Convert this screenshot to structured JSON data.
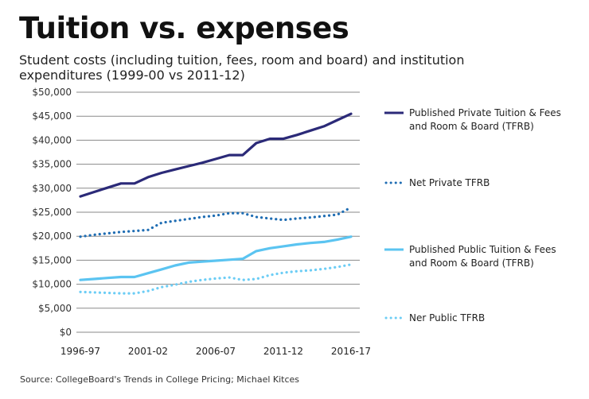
{
  "title": "Tuition vs. expenses",
  "subtitle": "Student costs (including tuition, fees, room and board) and institution expenditures (1999-00 vs 2011-12)",
  "source": "Source: CollegeBoard's Trends in College Pricing; Michael Kitces",
  "chart_data": {
    "type": "line",
    "title": "Tuition vs. expenses",
    "subtitle": "Student costs (including tuition, fees, room and board) and institution expenditures (1999-00 vs 2011-12)",
    "xlabel": "",
    "ylabel": "",
    "ylim": [
      0,
      50000
    ],
    "grid": true,
    "legend_position": "right",
    "x": [
      "1996-97",
      "1997-98",
      "1998-99",
      "1999-00",
      "2000-01",
      "2001-02",
      "2002-03",
      "2003-04",
      "2004-05",
      "2005-06",
      "2006-07",
      "2007-08",
      "2008-09",
      "2009-10",
      "2010-11",
      "2011-12",
      "2012-13",
      "2013-14",
      "2014-15",
      "2015-16",
      "2016-17"
    ],
    "x_tick_labels": [
      "1996-97",
      "2001-02",
      "2006-07",
      "2011-12",
      "2016-17"
    ],
    "y_ticks": [
      0,
      5000,
      10000,
      15000,
      20000,
      25000,
      30000,
      35000,
      40000,
      45000,
      50000
    ],
    "y_tick_labels": [
      "$0",
      "$5,000",
      "$10,000",
      "$15,000",
      "$20,000",
      "$25,000",
      "$30,000",
      "$35,000",
      "$40,000",
      "$45,000",
      "$50,000"
    ],
    "series": [
      {
        "name": "Published Private Tuition & Fees and Room & Board (TFRB)",
        "legend_lines": [
          "Published Private Tuition & Fees",
          "and Room & Board (TFRB)"
        ],
        "style": "solid",
        "color": "#2b2a78",
        "values": [
          28300,
          29200,
          30100,
          31000,
          31000,
          32300,
          33200,
          33900,
          34600,
          35300,
          36100,
          36900,
          36900,
          39400,
          40300,
          40300,
          41100,
          42000,
          42900,
          44200,
          45500
        ]
      },
      {
        "name": "Net Private TFRB",
        "legend_lines": [
          "Net Private TFRB"
        ],
        "style": "dotted",
        "color": "#1f6db3",
        "values": [
          19900,
          20300,
          20600,
          20900,
          21100,
          21300,
          22800,
          23200,
          23600,
          24000,
          24300,
          24800,
          24800,
          24000,
          23700,
          23400,
          23700,
          23900,
          24200,
          24500,
          26000
        ]
      },
      {
        "name": "Published Public Tuition & Fees and Room & Board (TFRB)",
        "legend_lines": [
          "Published Public Tuition & Fees",
          "and Room & Board (TFRB)"
        ],
        "style": "solid",
        "color": "#5bc4f1",
        "values": [
          10900,
          11100,
          11300,
          11500,
          11500,
          12300,
          13100,
          13900,
          14500,
          14700,
          14900,
          15100,
          15300,
          16900,
          17500,
          17900,
          18300,
          18600,
          18800,
          19300,
          19900
        ]
      },
      {
        "name": "Ner Public TFRB",
        "legend_lines": [
          "Ner Public TFRB"
        ],
        "style": "dotted",
        "color": "#6ccdf5",
        "values": [
          8400,
          8300,
          8200,
          8100,
          8100,
          8600,
          9400,
          9900,
          10500,
          10900,
          11200,
          11400,
          10900,
          11100,
          11900,
          12400,
          12700,
          12900,
          13200,
          13600,
          14100
        ]
      }
    ]
  }
}
